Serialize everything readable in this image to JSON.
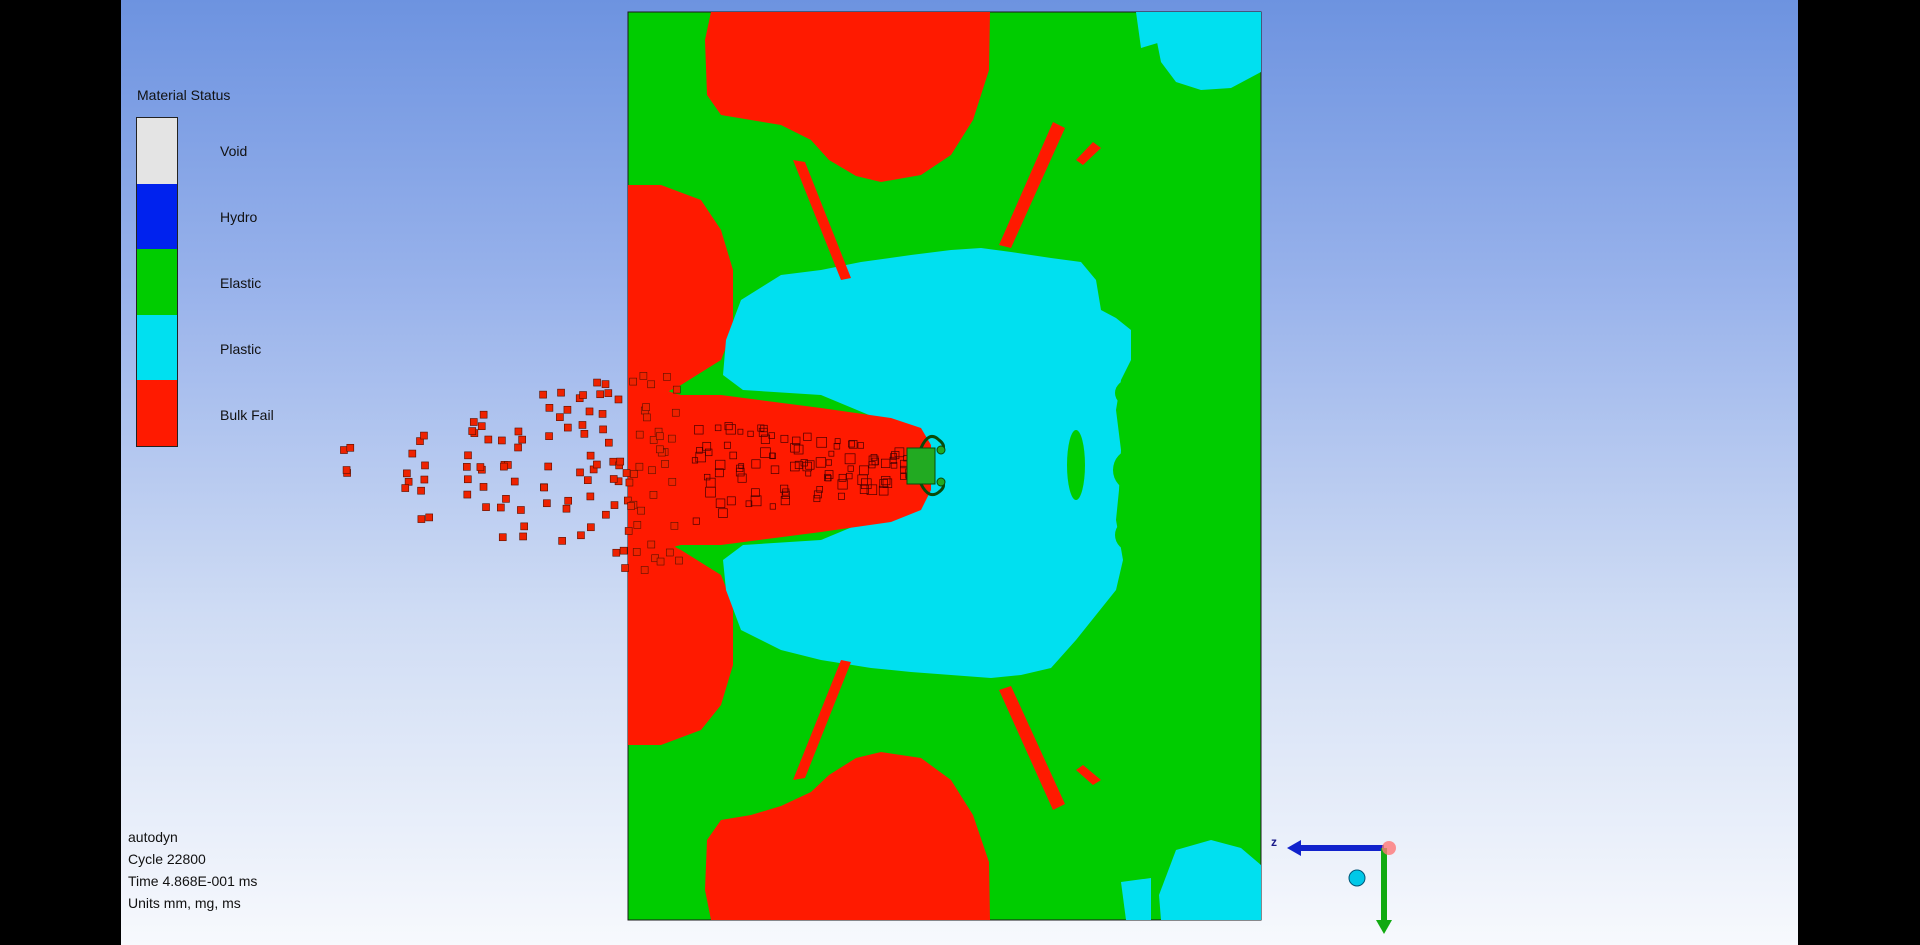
{
  "legend": {
    "title": "Material Status",
    "items": [
      {
        "label": "Void",
        "color": "#e4e4e4"
      },
      {
        "label": "Hydro",
        "color": "#0022ee"
      },
      {
        "label": "Elastic",
        "color": "#00cc00"
      },
      {
        "label": "Plastic",
        "color": "#00e0f0"
      },
      {
        "label": "Bulk Fail",
        "color": "#ff1a00"
      }
    ]
  },
  "info": {
    "app": "autodyn",
    "cycle": "Cycle 22800",
    "time": "Time 4.868E-001 ms",
    "units": "Units mm, mg, ms"
  },
  "axes": {
    "z_label": "z"
  },
  "colors": {
    "elastic": "#00cc00",
    "plastic": "#00e0f0",
    "bulk_fail": "#ff1a00",
    "projectile": "#22aa22",
    "axis_z": "#1122cc",
    "axis_y": "#11aa11"
  }
}
